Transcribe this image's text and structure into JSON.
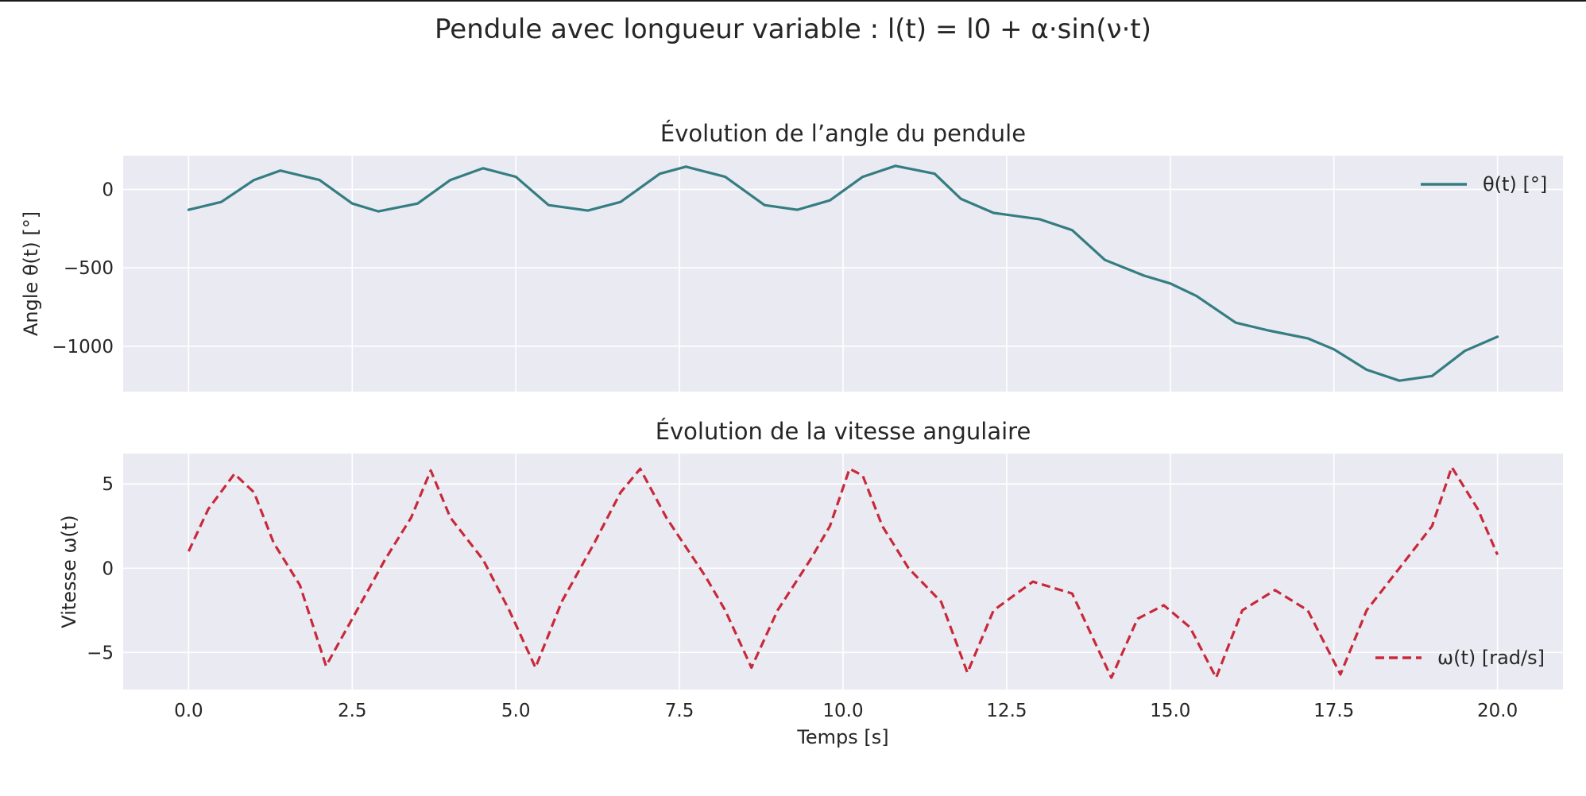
{
  "figure": {
    "suptitle": "Pendule avec longueur variable : l(t) = l0 + α·sin(ν·t)"
  },
  "chart_data": [
    {
      "type": "line",
      "title": "Évolution de l’angle du pendule",
      "xlabel": "",
      "ylabel": "Angle θ(t) [°]",
      "xlim": [
        -1.0,
        21.0
      ],
      "ylim": [
        -1290,
        215
      ],
      "xticks": [
        0.0,
        2.5,
        5.0,
        7.5,
        10.0,
        12.5,
        15.0,
        17.5,
        20.0
      ],
      "xtick_labels": [
        "",
        "",
        "",
        "",
        "",
        "",
        "",
        "",
        ""
      ],
      "yticks": [
        0,
        -500,
        -1000
      ],
      "ytick_labels": [
        "0",
        "−500",
        "−1000"
      ],
      "grid": true,
      "legend_position": "upper right",
      "series": [
        {
          "name": "θ(t) [°]",
          "color": "#347d82",
          "style": "solid",
          "x": [
            0,
            0.5,
            1.0,
            1.4,
            2.0,
            2.5,
            2.9,
            3.5,
            4.0,
            4.5,
            5.0,
            5.5,
            6.1,
            6.6,
            7.2,
            7.6,
            8.2,
            8.8,
            9.3,
            9.8,
            10.3,
            10.8,
            11.4,
            11.8,
            12.3,
            13.0,
            13.5,
            14.0,
            14.6,
            15.0,
            15.4,
            16.0,
            16.5,
            17.1,
            17.5,
            18.0,
            18.5,
            19.0,
            19.5,
            20.0
          ],
          "y": [
            -130,
            -80,
            60,
            120,
            60,
            -90,
            -140,
            -90,
            60,
            135,
            80,
            -100,
            -135,
            -80,
            100,
            145,
            80,
            -100,
            -130,
            -70,
            80,
            150,
            100,
            -60,
            -150,
            -190,
            -260,
            -450,
            -550,
            -600,
            -680,
            -850,
            -900,
            -950,
            -1020,
            -1150,
            -1220,
            -1190,
            -1030,
            -940
          ]
        }
      ]
    },
    {
      "type": "line",
      "title": "Évolution de la vitesse angulaire",
      "xlabel": "Temps [s]",
      "ylabel": "Vitesse ω(t)",
      "xlim": [
        -1.0,
        21.0
      ],
      "ylim": [
        -7.2,
        6.8
      ],
      "xticks": [
        0.0,
        2.5,
        5.0,
        7.5,
        10.0,
        12.5,
        15.0,
        17.5,
        20.0
      ],
      "xtick_labels": [
        "0.0",
        "2.5",
        "5.0",
        "7.5",
        "10.0",
        "12.5",
        "15.0",
        "17.5",
        "20.0"
      ],
      "yticks": [
        5,
        0,
        -5
      ],
      "ytick_labels": [
        "5",
        "0",
        "−5"
      ],
      "grid": true,
      "legend_position": "lower right",
      "series": [
        {
          "name": "ω(t) [rad/s]",
          "color": "#c8293a",
          "style": "dashed",
          "x": [
            0,
            0.3,
            0.7,
            1.0,
            1.3,
            1.7,
            2.1,
            2.5,
            3.0,
            3.4,
            3.7,
            4.0,
            4.5,
            4.9,
            5.3,
            5.7,
            6.2,
            6.6,
            6.9,
            7.3,
            7.9,
            8.2,
            8.6,
            9.0,
            9.5,
            9.8,
            10.1,
            10.3,
            10.6,
            11.0,
            11.5,
            11.9,
            12.3,
            12.9,
            13.5,
            14.1,
            14.5,
            14.9,
            15.3,
            15.7,
            16.1,
            16.6,
            17.1,
            17.6,
            18.0,
            18.5,
            19.0,
            19.3,
            19.7,
            20.0
          ],
          "y": [
            1.0,
            3.5,
            5.6,
            4.5,
            1.5,
            -1.0,
            -5.8,
            -3.0,
            0.5,
            3.0,
            5.8,
            3.0,
            0.5,
            -2.5,
            -5.9,
            -2.0,
            1.5,
            4.5,
            5.9,
            3.0,
            -0.5,
            -2.5,
            -5.9,
            -2.5,
            0.5,
            2.5,
            5.9,
            5.5,
            2.5,
            0.0,
            -2.0,
            -6.2,
            -2.5,
            -0.8,
            -1.5,
            -6.5,
            -3.0,
            -2.2,
            -3.5,
            -6.5,
            -2.5,
            -1.3,
            -2.5,
            -6.3,
            -2.5,
            0.0,
            2.5,
            6.0,
            3.5,
            0.8
          ]
        }
      ]
    }
  ]
}
